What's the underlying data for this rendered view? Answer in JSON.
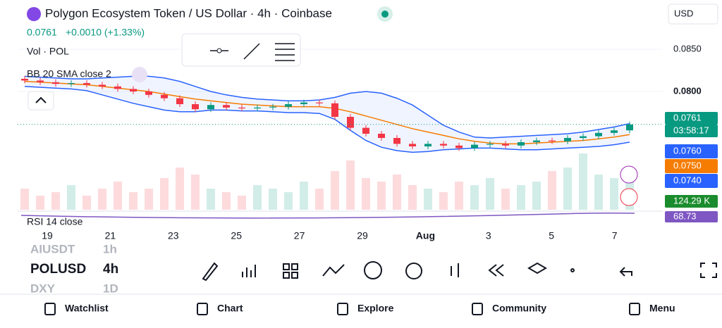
{
  "header": {
    "title": "Polygon Ecosystem Token / US Dollar · 4h · Coinbase",
    "price": "0.0761",
    "change": "+0.0010 (+1.33%)",
    "currency": "USD"
  },
  "indicators": {
    "volume": "Vol · POL",
    "bollinger": "BB 20 SMA close 2",
    "rsi": "RSI 14 close"
  },
  "chart_data": {
    "type": "candlestick",
    "ylim": [
      0.066,
      0.086
    ],
    "yticks": [
      {
        "value": 0.085,
        "label": "0.0850"
      },
      {
        "value": 0.08,
        "label": "0.0800"
      }
    ],
    "x_labels": [
      "19",
      "21",
      "23",
      "25",
      "27",
      "29",
      "Aug",
      "3",
      "5",
      "7"
    ],
    "open": [
      0.0815,
      0.0813,
      0.0811,
      0.0809,
      0.081,
      0.0808,
      0.0806,
      0.0803,
      0.08,
      0.0796,
      0.0792,
      0.0785,
      0.0779,
      0.0784,
      0.0781,
      0.078,
      0.0781,
      0.0782,
      0.0785,
      0.0787,
      0.0786,
      0.077,
      0.0757,
      0.075,
      0.0745,
      0.0738,
      0.0735,
      0.0738,
      0.0736,
      0.0733,
      0.0737,
      0.0738,
      0.0736,
      0.074,
      0.0742,
      0.0741,
      0.0745,
      0.0747,
      0.0751,
      0.0754
    ],
    "close": [
      0.0813,
      0.0811,
      0.0809,
      0.081,
      0.0808,
      0.0806,
      0.0803,
      0.08,
      0.0796,
      0.0792,
      0.0785,
      0.0779,
      0.0784,
      0.0781,
      0.078,
      0.0781,
      0.0782,
      0.0785,
      0.0787,
      0.0786,
      0.077,
      0.0757,
      0.075,
      0.0745,
      0.0738,
      0.0735,
      0.0738,
      0.0736,
      0.0733,
      0.0737,
      0.0738,
      0.0736,
      0.074,
      0.0742,
      0.0741,
      0.0745,
      0.0747,
      0.0751,
      0.0754,
      0.0761
    ],
    "bb_basis": [
      0.0812,
      0.0811,
      0.081,
      0.0809,
      0.0808,
      0.0806,
      0.0804,
      0.0802,
      0.08,
      0.0797,
      0.0794,
      0.0791,
      0.0789,
      0.0787,
      0.0785,
      0.0784,
      0.0783,
      0.0782,
      0.0782,
      0.0782,
      0.078,
      0.0776,
      0.0771,
      0.0766,
      0.0761,
      0.0756,
      0.0752,
      0.0748,
      0.0744,
      0.0741,
      0.0739,
      0.0738,
      0.0738,
      0.0739,
      0.074,
      0.0741,
      0.0742,
      0.0744,
      0.0746,
      0.0749
    ],
    "bb_upper": [
      0.0818,
      0.0817,
      0.0816,
      0.0815,
      0.0815,
      0.0816,
      0.0817,
      0.0818,
      0.0818,
      0.0816,
      0.0812,
      0.0806,
      0.08,
      0.0796,
      0.0793,
      0.0791,
      0.079,
      0.0789,
      0.0789,
      0.079,
      0.0793,
      0.0798,
      0.08,
      0.0798,
      0.0792,
      0.0784,
      0.0772,
      0.076,
      0.0752,
      0.0746,
      0.0745,
      0.0746,
      0.0747,
      0.0748,
      0.0749,
      0.075,
      0.0752,
      0.0755,
      0.0758,
      0.0762
    ],
    "bb_lower": [
      0.0806,
      0.0805,
      0.0804,
      0.0803,
      0.0801,
      0.0796,
      0.0791,
      0.0786,
      0.0782,
      0.0778,
      0.0776,
      0.0776,
      0.0778,
      0.0778,
      0.0777,
      0.0777,
      0.0776,
      0.0775,
      0.0775,
      0.0774,
      0.0767,
      0.0754,
      0.0742,
      0.0734,
      0.073,
      0.0728,
      0.0729,
      0.0731,
      0.0732,
      0.0733,
      0.0733,
      0.0732,
      0.0731,
      0.0731,
      0.0732,
      0.0733,
      0.0734,
      0.0735,
      0.0737,
      0.074
    ],
    "volume": [
      30,
      20,
      25,
      35,
      20,
      30,
      40,
      25,
      30,
      45,
      60,
      50,
      30,
      25,
      20,
      35,
      30,
      25,
      40,
      30,
      55,
      70,
      45,
      40,
      50,
      35,
      30,
      25,
      40,
      35,
      45,
      30,
      35,
      40,
      55,
      60,
      80,
      50,
      45,
      40
    ],
    "up_color": "#089981",
    "down_color": "#f23645",
    "basis_color": "#f57c00",
    "band_color": "#2962ff"
  },
  "price_badges": [
    "0.0761",
    "03:58:17",
    "0.0760",
    "0.0750",
    "0.0740",
    "124.29 K",
    "68.73"
  ],
  "symbols": [
    {
      "symbol": "AIUSDT",
      "interval": "1h"
    },
    {
      "symbol": "POLUSD",
      "interval": "4h"
    },
    {
      "symbol": "DXY",
      "interval": "1D"
    }
  ],
  "nav": [
    "Watchlist",
    "Chart",
    "Explore",
    "Community",
    "Menu"
  ]
}
